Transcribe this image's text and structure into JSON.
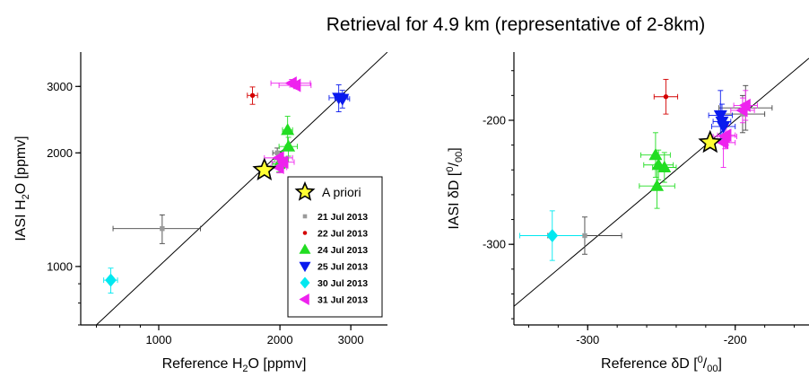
{
  "title": "Retrieval for 4.9 km (representative of  2-8km)",
  "colors": {
    "21 Jul 2013": "#9a9a9a",
    "22 Jul 2013": "#d40000",
    "24 Jul 2013": "#22dd22",
    "25 Jul 2013": "#0a1aee",
    "30 Jul 2013": "#00e8f0",
    "31 Jul 2013": "#ee22ee",
    "A priori": "#ffff33"
  },
  "legend": {
    "apriori_label": "A priori",
    "entries": [
      {
        "label": "21 Jul 2013",
        "marker": "square"
      },
      {
        "label": "22 Jul 2013",
        "marker": "circle"
      },
      {
        "label": "24 Jul 2013",
        "marker": "triangle-up"
      },
      {
        "label": "25 Jul 2013",
        "marker": "triangle-down"
      },
      {
        "label": "30 Jul 2013",
        "marker": "diamond"
      },
      {
        "label": "31 Jul 2013",
        "marker": "triangle-left"
      }
    ]
  },
  "chart_data": [
    {
      "type": "scatter",
      "scale": "log",
      "xlabel": "Reference H2O [ppmv]",
      "ylabel": "IASI H2O [ppmv]",
      "xlim": [
        640,
        3700
      ],
      "ylim": [
        700,
        3700
      ],
      "xticks": [
        1000,
        2000,
        3000
      ],
      "yticks": [
        1000,
        2000,
        3000
      ],
      "one_to_one_line": true,
      "apriori": {
        "x": 1830,
        "y": 1800
      },
      "series": [
        {
          "name": "21 Jul 2013",
          "marker": "square",
          "points": [
            {
              "x": 1020,
              "y": 1260,
              "xerr": 250,
              "yerr": 110
            },
            {
              "x": 1970,
              "y": 2000,
              "xerr": 50,
              "yerr": 60
            }
          ]
        },
        {
          "name": "22 Jul 2013",
          "marker": "circle",
          "points": [
            {
              "x": 1710,
              "y": 2840,
              "xerr": 50,
              "yerr": 150
            }
          ]
        },
        {
          "name": "24 Jul 2013",
          "marker": "triangle-up",
          "points": [
            {
              "x": 2090,
              "y": 2300,
              "xerr": 60,
              "yerr": 200
            },
            {
              "x": 2100,
              "y": 2080,
              "xerr": 110,
              "yerr": 120
            },
            {
              "x": 2020,
              "y": 1920,
              "xerr": 80,
              "yerr": 100
            },
            {
              "x": 1990,
              "y": 1870,
              "xerr": 70,
              "yerr": 90
            }
          ]
        },
        {
          "name": "25 Jul 2013",
          "marker": "triangle-down",
          "points": [
            {
              "x": 2800,
              "y": 2800,
              "xerr": 150,
              "yerr": 230
            },
            {
              "x": 2860,
              "y": 2780,
              "xerr": 120,
              "yerr": 150
            }
          ]
        },
        {
          "name": "30 Jul 2013",
          "marker": "diamond",
          "points": [
            {
              "x": 760,
              "y": 920,
              "xerr": 30,
              "yerr": 70
            }
          ]
        },
        {
          "name": "31 Jul 2013",
          "marker": "triangle-left",
          "points": [
            {
              "x": 2140,
              "y": 3060,
              "xerr": 240,
              "yerr": 70
            },
            {
              "x": 2190,
              "y": 3020,
              "xerr": 200,
              "yerr": 60
            },
            {
              "x": 1990,
              "y": 1940,
              "xerr": 160,
              "yerr": 60
            },
            {
              "x": 2040,
              "y": 1890,
              "xerr": 130,
              "yerr": 60
            },
            {
              "x": 1990,
              "y": 1830,
              "xerr": 90,
              "yerr": 60
            }
          ]
        }
      ]
    },
    {
      "type": "scatter",
      "scale": "linear",
      "xlabel": "Reference δD [0/00]",
      "ylabel": "IASI δD [0/00]",
      "xlim": [
        -350,
        -150
      ],
      "ylim": [
        -365,
        -145
      ],
      "xticks": [
        -300,
        -200
      ],
      "yticks": [
        -300,
        -200
      ],
      "one_to_one_line": true,
      "apriori": {
        "x": -217,
        "y": -218
      },
      "series": [
        {
          "name": "21 Jul 2013",
          "marker": "square",
          "points": [
            {
              "x": -302,
              "y": -293,
              "xerr": 25,
              "yerr": 15
            },
            {
              "x": -193,
              "y": -190,
              "xerr": 18,
              "yerr": 18
            },
            {
              "x": -195,
              "y": -195,
              "xerr": 15,
              "yerr": 15
            }
          ]
        },
        {
          "name": "22 Jul 2013",
          "marker": "circle",
          "points": [
            {
              "x": -247,
              "y": -181,
              "xerr": 8,
              "yerr": 14
            }
          ]
        },
        {
          "name": "24 Jul 2013",
          "marker": "triangle-up",
          "points": [
            {
              "x": -254,
              "y": -228,
              "xerr": 10,
              "yerr": 18
            },
            {
              "x": -252,
              "y": -236,
              "xerr": 10,
              "yerr": 12
            },
            {
              "x": -248,
              "y": -238,
              "xerr": 8,
              "yerr": 12
            },
            {
              "x": -253,
              "y": -253,
              "xerr": 12,
              "yerr": 18
            }
          ]
        },
        {
          "name": "25 Jul 2013",
          "marker": "triangle-down",
          "points": [
            {
              "x": -210,
              "y": -196,
              "xerr": 8,
              "yerr": 20
            },
            {
              "x": -209,
              "y": -201,
              "xerr": 6,
              "yerr": 14
            },
            {
              "x": -208,
              "y": -205,
              "xerr": 8,
              "yerr": 12
            }
          ]
        },
        {
          "name": "30 Jul 2013",
          "marker": "diamond",
          "points": [
            {
              "x": -324,
              "y": -293,
              "xerr": 22,
              "yerr": 20
            }
          ]
        },
        {
          "name": "31 Jul 2013",
          "marker": "triangle-left",
          "points": [
            {
              "x": -193,
              "y": -188,
              "xerr": 8,
              "yerr": 12
            },
            {
              "x": -195,
              "y": -192,
              "xerr": 8,
              "yerr": 10
            },
            {
              "x": -207,
              "y": -213,
              "xerr": 8,
              "yerr": 10
            },
            {
              "x": -208,
              "y": -218,
              "xerr": 8,
              "yerr": 20
            },
            {
              "x": -206,
              "y": -212,
              "xerr": 6,
              "yerr": 8
            }
          ]
        }
      ]
    }
  ]
}
